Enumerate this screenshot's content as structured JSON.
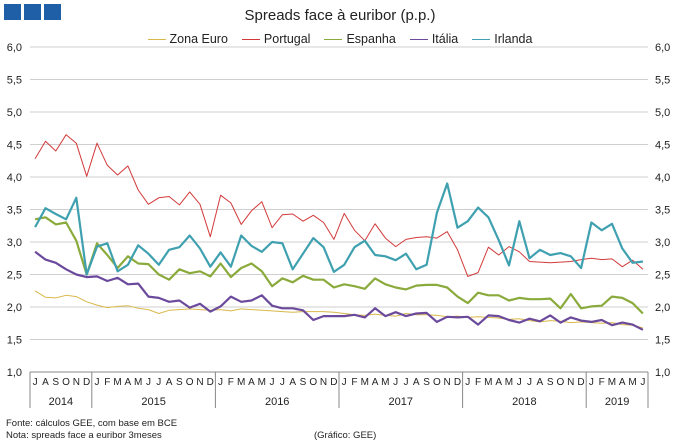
{
  "header": {
    "deco_colors": [
      "#1f5fa8",
      "#1f5fa8",
      "#1f5fa8"
    ]
  },
  "footer": {
    "source": "Fonte: cálculos GEE, com base em BCE",
    "note": "Nota: spreads face a euribor 3meses",
    "credit": "(Gráfico: GEE)"
  },
  "chart_data": {
    "type": "line",
    "title": "Spreads face à euribor (p.p.)",
    "xlabel": "",
    "ylabel": "",
    "ylim": [
      1.0,
      6.0
    ],
    "yticks": [
      "1,0",
      "1,5",
      "2,0",
      "2,5",
      "3,0",
      "3,5",
      "4,0",
      "4,5",
      "5,0",
      "5,5",
      "6,0"
    ],
    "grid": true,
    "legend": "top-center",
    "categories": [
      "J",
      "A",
      "S",
      "O",
      "N",
      "D",
      "J",
      "F",
      "M",
      "A",
      "M",
      "J",
      "J",
      "A",
      "S",
      "O",
      "N",
      "D",
      "J",
      "F",
      "M",
      "A",
      "M",
      "J",
      "J",
      "A",
      "S",
      "O",
      "N",
      "D",
      "J",
      "F",
      "M",
      "A",
      "M",
      "J",
      "J",
      "A",
      "S",
      "O",
      "N",
      "D",
      "J",
      "F",
      "M",
      "A",
      "M",
      "J",
      "J",
      "A",
      "S",
      "O",
      "N",
      "D",
      "J",
      "F",
      "M",
      "A",
      "M",
      "J"
    ],
    "years": [
      {
        "label": "2014",
        "start": 0,
        "end": 5
      },
      {
        "label": "2015",
        "start": 6,
        "end": 17
      },
      {
        "label": "2016",
        "start": 18,
        "end": 29
      },
      {
        "label": "2017",
        "start": 30,
        "end": 41
      },
      {
        "label": "2018",
        "start": 42,
        "end": 53
      },
      {
        "label": "2019",
        "start": 54,
        "end": 59
      }
    ],
    "series": [
      {
        "name": "Zona Euro",
        "color": "#d9b84a",
        "values": [
          2.25,
          2.15,
          2.14,
          2.18,
          2.16,
          2.08,
          2.03,
          1.99,
          2.01,
          2.02,
          1.98,
          1.96,
          1.9,
          1.95,
          1.96,
          1.97,
          1.96,
          1.95,
          1.96,
          1.94,
          1.97,
          1.96,
          1.95,
          1.94,
          1.93,
          1.92,
          1.93,
          1.93,
          1.93,
          1.92,
          1.9,
          1.88,
          1.87,
          1.89,
          1.87,
          1.86,
          1.9,
          1.88,
          1.88,
          1.87,
          1.85,
          1.86,
          1.84,
          1.85,
          1.84,
          1.83,
          1.81,
          1.82,
          1.79,
          1.77,
          1.79,
          1.78,
          1.76,
          1.77,
          1.76,
          1.75,
          1.76,
          1.73,
          1.72,
          1.68
        ]
      },
      {
        "name": "Portugal",
        "color": "#d23a3a",
        "values": [
          4.28,
          4.55,
          4.4,
          4.65,
          4.52,
          4.01,
          4.52,
          4.18,
          4.03,
          4.17,
          3.8,
          3.58,
          3.68,
          3.7,
          3.57,
          3.77,
          3.58,
          3.08,
          3.72,
          3.6,
          3.27,
          3.48,
          3.62,
          3.22,
          3.42,
          3.43,
          3.32,
          3.41,
          3.3,
          3.04,
          3.44,
          3.18,
          3.02,
          3.28,
          3.06,
          2.93,
          3.04,
          3.07,
          3.08,
          3.06,
          3.16,
          2.88,
          2.47,
          2.53,
          2.92,
          2.8,
          2.93,
          2.85,
          2.7,
          2.69,
          2.68,
          2.69,
          2.7,
          2.73,
          2.75,
          2.73,
          2.74,
          2.62,
          2.72,
          2.58
        ]
      },
      {
        "name": "Espanha",
        "color": "#8aaa3c",
        "values": [
          3.35,
          3.38,
          3.27,
          3.3,
          3.02,
          2.5,
          2.98,
          2.8,
          2.6,
          2.78,
          2.67,
          2.66,
          2.5,
          2.42,
          2.58,
          2.52,
          2.55,
          2.47,
          2.67,
          2.46,
          2.6,
          2.67,
          2.55,
          2.32,
          2.44,
          2.38,
          2.48,
          2.42,
          2.42,
          2.3,
          2.35,
          2.32,
          2.28,
          2.44,
          2.35,
          2.3,
          2.27,
          2.33,
          2.34,
          2.34,
          2.3,
          2.16,
          2.06,
          2.22,
          2.18,
          2.18,
          2.1,
          2.14,
          2.12,
          2.12,
          2.13,
          1.98,
          2.2,
          1.98,
          2.01,
          2.02,
          2.16,
          2.14,
          2.06,
          1.9
        ]
      },
      {
        "name": "Itália",
        "color": "#6b4a9c",
        "values": [
          2.85,
          2.73,
          2.68,
          2.58,
          2.5,
          2.46,
          2.47,
          2.4,
          2.45,
          2.35,
          2.36,
          2.16,
          2.14,
          2.08,
          2.1,
          1.99,
          2.05,
          1.93,
          2.01,
          2.16,
          2.08,
          2.1,
          2.18,
          2.02,
          1.98,
          1.98,
          1.95,
          1.8,
          1.86,
          1.86,
          1.86,
          1.88,
          1.84,
          1.98,
          1.86,
          1.92,
          1.86,
          1.9,
          1.91,
          1.77,
          1.85,
          1.84,
          1.85,
          1.73,
          1.87,
          1.86,
          1.8,
          1.76,
          1.82,
          1.78,
          1.87,
          1.76,
          1.84,
          1.79,
          1.77,
          1.8,
          1.72,
          1.76,
          1.73,
          1.65
        ]
      },
      {
        "name": "Irlanda",
        "color": "#3fa0b0",
        "values": [
          3.23,
          3.52,
          3.43,
          3.35,
          3.68,
          2.5,
          2.93,
          2.98,
          2.55,
          2.65,
          2.95,
          2.82,
          2.65,
          2.88,
          2.92,
          3.1,
          2.9,
          2.62,
          2.84,
          2.62,
          3.1,
          2.94,
          2.85,
          3.0,
          2.98,
          2.58,
          2.82,
          3.06,
          2.92,
          2.54,
          2.65,
          2.92,
          3.02,
          2.8,
          2.78,
          2.72,
          2.82,
          2.58,
          2.65,
          3.45,
          3.9,
          3.22,
          3.32,
          3.53,
          3.38,
          3.03,
          2.64,
          3.32,
          2.75,
          2.88,
          2.8,
          2.83,
          2.78,
          2.6,
          3.3,
          3.18,
          3.28,
          2.9,
          2.68,
          2.7
        ]
      }
    ]
  }
}
